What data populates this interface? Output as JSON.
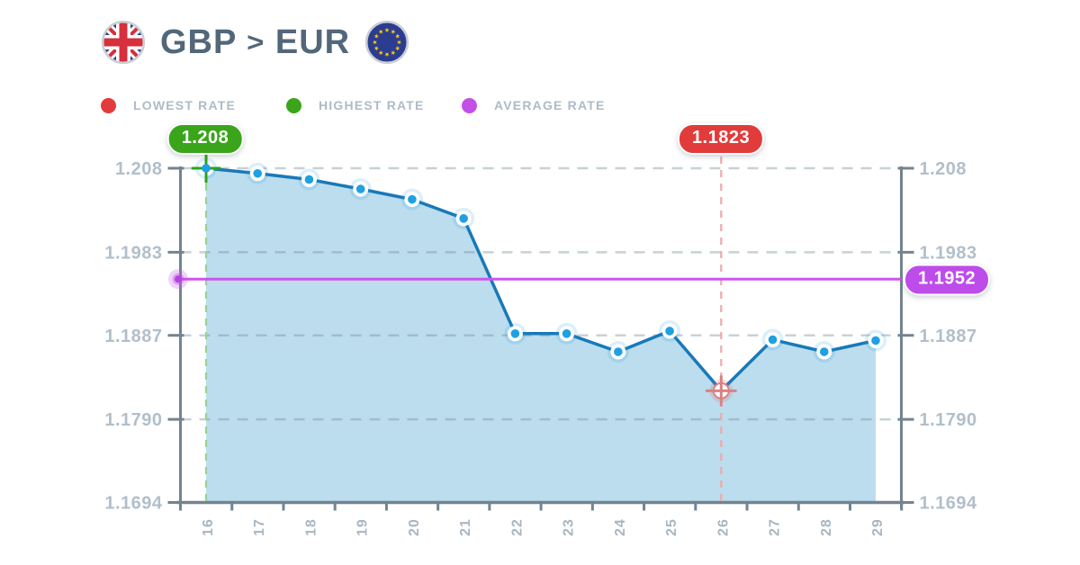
{
  "header": {
    "from_code": "GBP",
    "separator": ">",
    "to_code": "EUR",
    "from_flag": "uk-flag",
    "to_flag": "eu-flag"
  },
  "legend": [
    {
      "id": "lowest",
      "label": "LOWEST RATE",
      "color": "#e23b3b"
    },
    {
      "id": "highest",
      "label": "HIGHEST RATE",
      "color": "#3aa51b"
    },
    {
      "id": "average",
      "label": "AVERAGE RATE",
      "color": "#c44fe8"
    }
  ],
  "badges": {
    "highest": {
      "label": "1.208",
      "color": "#3aa51b"
    },
    "lowest": {
      "label": "1.1823",
      "color": "#e23b3b"
    },
    "average": {
      "label": "1.1952",
      "color": "#bd4ceb"
    }
  },
  "chart_data": {
    "type": "area",
    "title": "GBP to EUR exchange rate by day of month",
    "x": [
      16,
      17,
      18,
      19,
      20,
      21,
      22,
      23,
      24,
      25,
      26,
      27,
      28,
      29
    ],
    "series": [
      {
        "name": "GBP>EUR rate",
        "values": [
          1.208,
          1.2074,
          1.2067,
          1.2056,
          1.2044,
          1.2022,
          1.1889,
          1.1889,
          1.1868,
          1.1892,
          1.1823,
          1.1882,
          1.1868,
          1.1881
        ]
      }
    ],
    "y_tick_labels": [
      "1.208",
      "1.1983",
      "1.1887",
      "1.1790",
      "1.1694"
    ],
    "y_tick_values": [
      1.208,
      1.1983,
      1.1887,
      1.179,
      1.1694
    ],
    "ylim": [
      1.1694,
      1.208
    ],
    "highest_point": {
      "x": 16,
      "value": 1.208
    },
    "lowest_point": {
      "x": 26,
      "value": 1.1823
    },
    "average_value": 1.1952,
    "grid": "dashed horizontal, y-axis labels on both sides, x labels rotated 90",
    "legend_position": "top"
  },
  "colors": {
    "line": "#1879b8",
    "point": "#1fa0e2",
    "point_glow": "rgba(33,158,222,0.16)",
    "fill": "#bcdded",
    "grid": "rgba(125,145,160,0.42)",
    "axis": "#73848f",
    "green_dash": "#97d294",
    "green_cross": "#2ca318",
    "red_dash": "#f0a8a8",
    "red_cross": "#d98282",
    "red_ring": "rgba(225,90,90,0.18)",
    "purple_line": "#cb55ee",
    "purple_dot": "#b443e4",
    "purple_glow": "rgba(196,79,232,0.25)"
  }
}
